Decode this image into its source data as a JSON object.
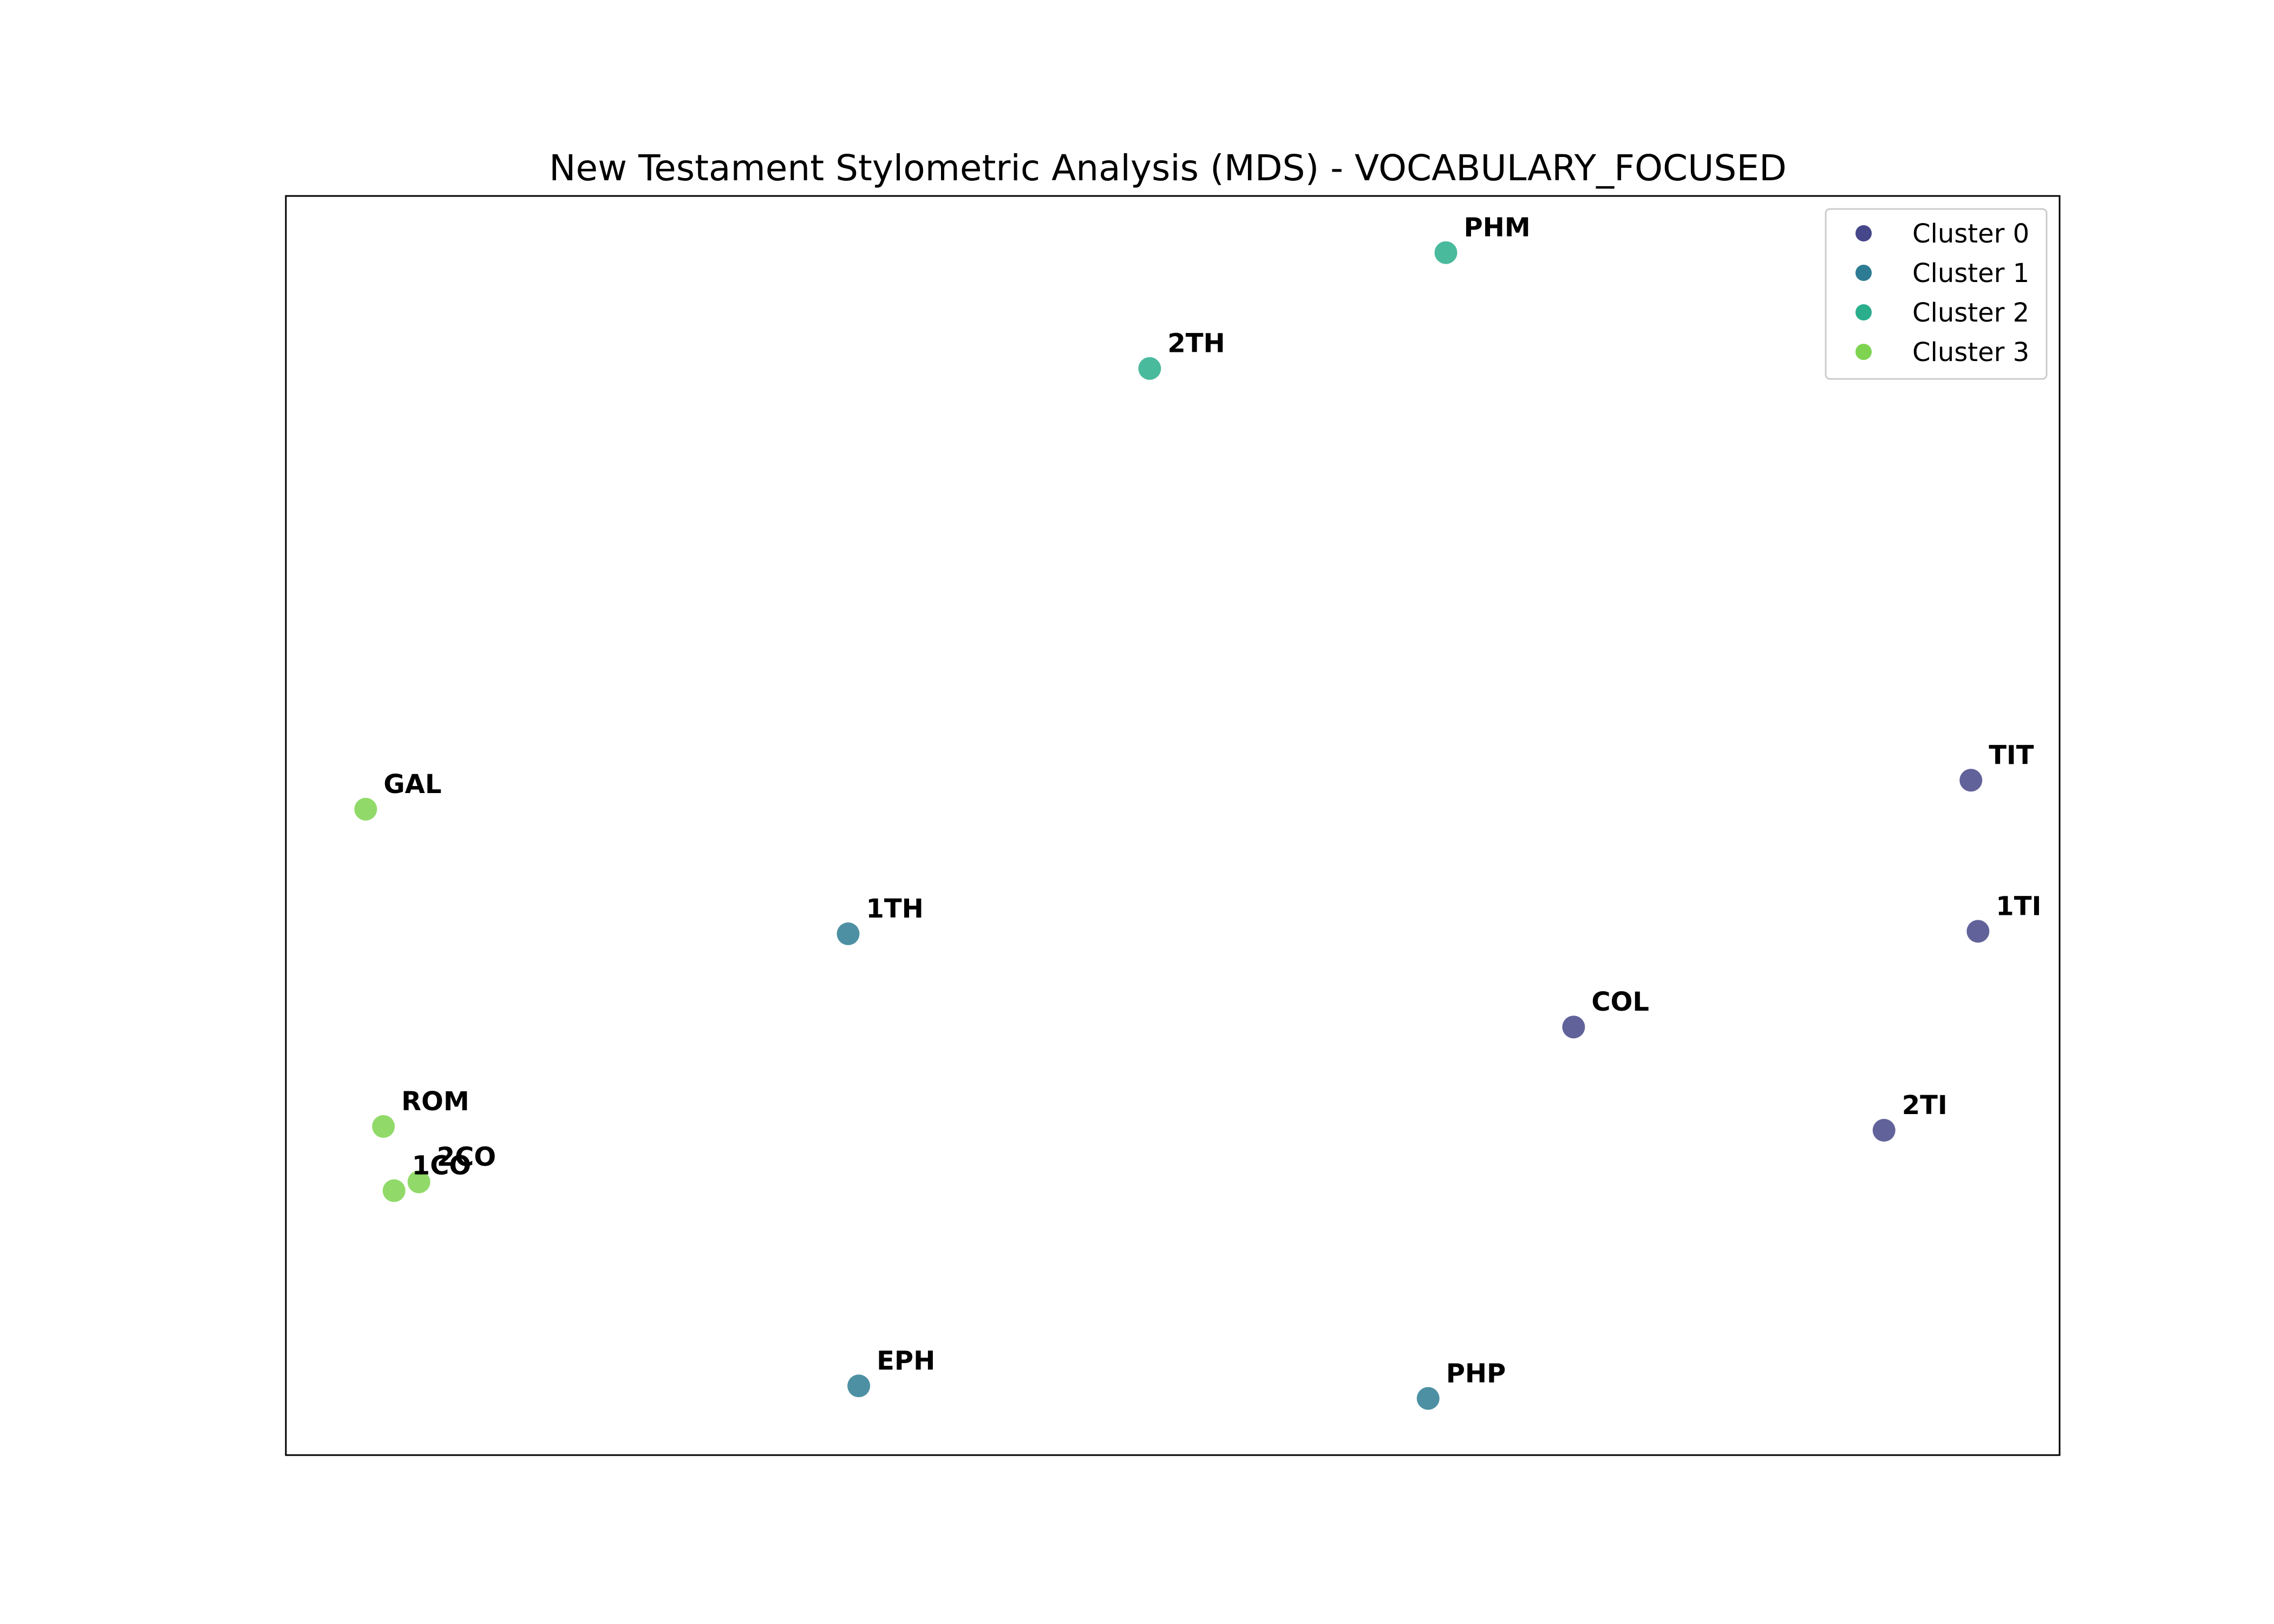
{
  "chart_data": {
    "type": "scatter",
    "title": "New Testament Stylometric Analysis (MDS) - VOCABULARY_FOCUSED",
    "xlabel": "",
    "ylabel": "",
    "xlim": [
      0,
      100
    ],
    "ylim": [
      0,
      100
    ],
    "grid": false,
    "axis_ticks_visible": false,
    "legend_position": "top-right",
    "series": [
      {
        "name": "Cluster 0",
        "color": "#46468a",
        "points": [
          {
            "label": "TIT",
            "x": 95.0,
            "y": 53.6
          },
          {
            "label": "1TI",
            "x": 95.4,
            "y": 41.6
          },
          {
            "label": "COL",
            "x": 72.6,
            "y": 34.0
          },
          {
            "label": "2TI",
            "x": 90.1,
            "y": 25.8
          }
        ]
      },
      {
        "name": "Cluster 1",
        "color": "#2e7c93",
        "points": [
          {
            "label": "1TH",
            "x": 31.7,
            "y": 41.4
          },
          {
            "label": "EPH",
            "x": 32.3,
            "y": 5.5
          },
          {
            "label": "PHP",
            "x": 64.4,
            "y": 4.5
          }
        ]
      },
      {
        "name": "Cluster 2",
        "color": "#2aae8c",
        "points": [
          {
            "label": "PHM",
            "x": 65.4,
            "y": 95.5
          },
          {
            "label": "2TH",
            "x": 48.7,
            "y": 86.3
          }
        ]
      },
      {
        "name": "Cluster 3",
        "color": "#7ed450",
        "points": [
          {
            "label": "GAL",
            "x": 4.5,
            "y": 51.3
          },
          {
            "label": "ROM",
            "x": 5.5,
            "y": 26.1
          },
          {
            "label": "2CO",
            "x": 7.5,
            "y": 21.7
          },
          {
            "label": "1CO",
            "x": 6.1,
            "y": 21.0
          }
        ]
      }
    ]
  }
}
